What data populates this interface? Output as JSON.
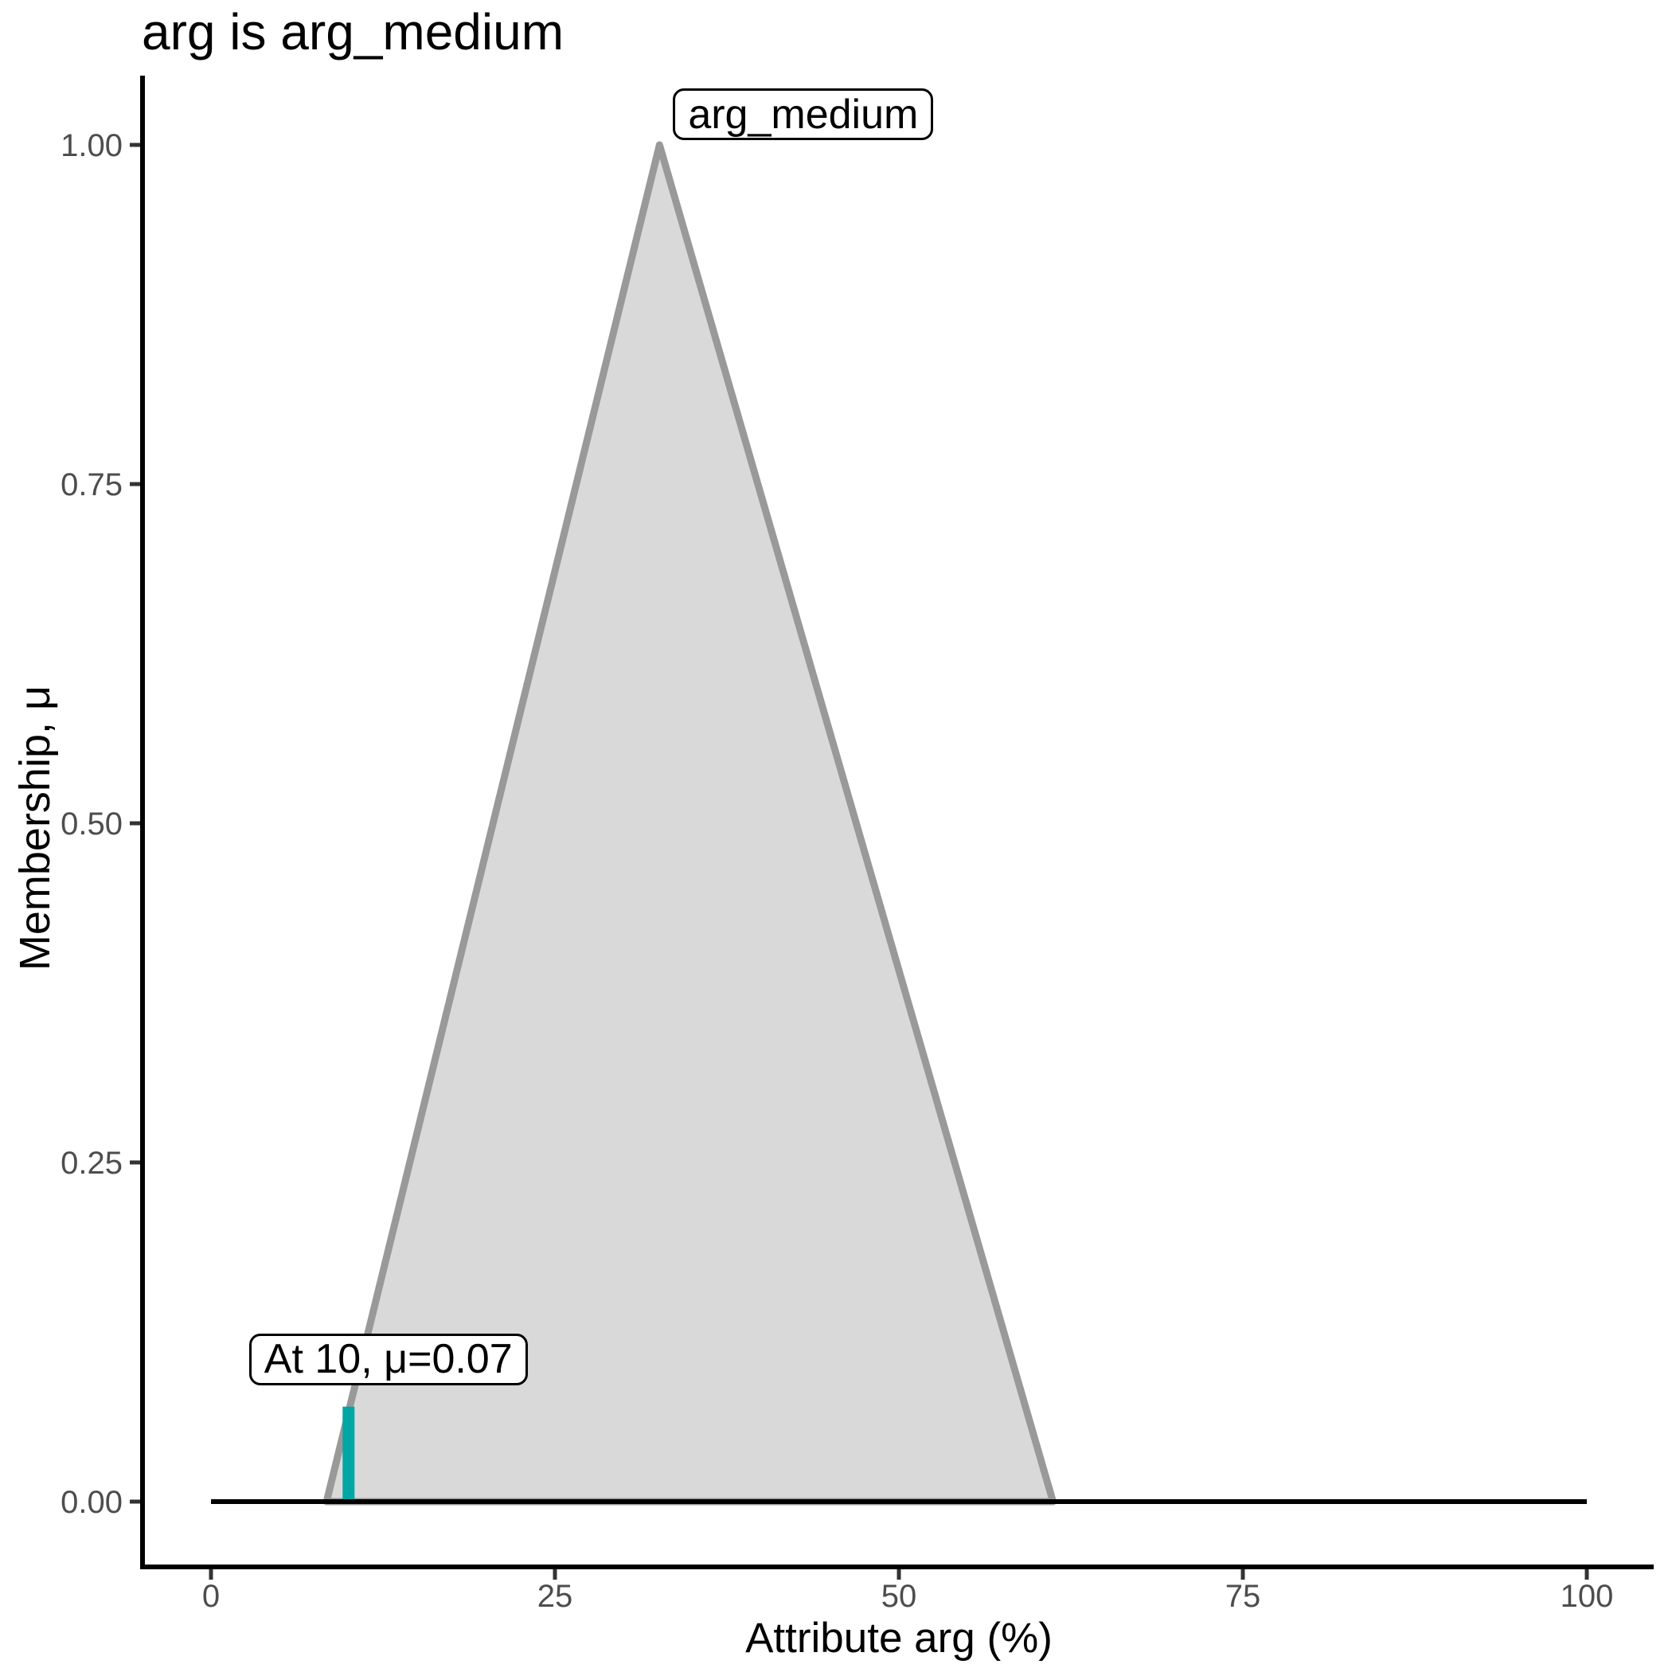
{
  "chart_data": {
    "type": "area",
    "title": "arg is arg_medium",
    "xlabel": "Attribute arg (%)",
    "ylabel": "Membership, μ",
    "xlim": [
      0,
      100
    ],
    "ylim": [
      0,
      1
    ],
    "grid": false,
    "legend": "none",
    "x_ticks": {
      "values": [
        0,
        25,
        50,
        75,
        100
      ],
      "labels": [
        "0",
        "25",
        "50",
        "75",
        "100"
      ]
    },
    "y_ticks": {
      "values": [
        0,
        0.25,
        0.5,
        0.75,
        1
      ],
      "labels": [
        "0.00",
        "0.25",
        "0.50",
        "0.75",
        "1.00"
      ]
    },
    "series": [
      {
        "name": "arg_medium",
        "type": "triangular_membership_function",
        "vertices": [
          [
            8.4,
            0
          ],
          [
            32.6,
            1
          ],
          [
            61.2,
            0
          ]
        ],
        "fill_color": "#D9D9D9",
        "line_color": "#999999"
      }
    ],
    "baseline": {
      "mu": 0,
      "x_from": 0,
      "x_to": 100,
      "color": "#000000"
    },
    "marker": {
      "x": 10,
      "mu": 0.07,
      "label": "At 10, μ=0.07",
      "color": "#00A6A3"
    },
    "set_label": {
      "text": "arg_medium",
      "anchor_x": 32.6,
      "anchor_y": 1.0
    },
    "colors": {
      "axis_line": "#000000",
      "tick_mark": "#333333",
      "tick_label": "#4D4D4D",
      "text": "#000000",
      "background": "#FFFFFF"
    }
  }
}
